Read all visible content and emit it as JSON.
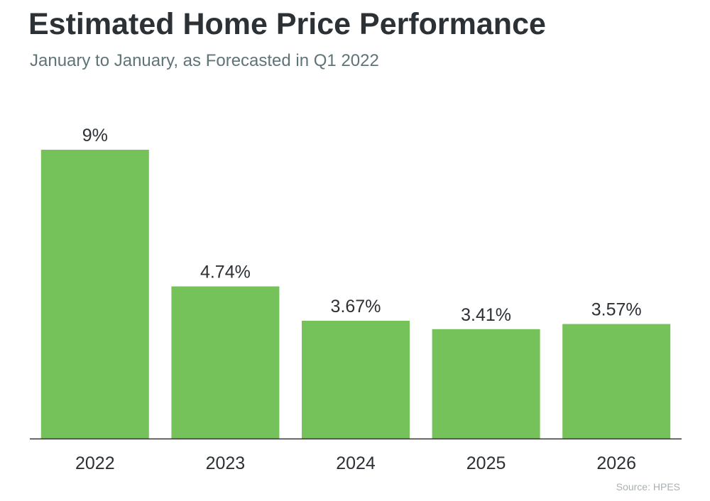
{
  "header": {
    "title": "Estimated Home Price Performance",
    "subtitle": "January to January, as Forecasted in Q1 2022"
  },
  "footer": {
    "source": "Source: HPES"
  },
  "colors": {
    "bar": "#76c25a",
    "axis": "#333333",
    "label": "#2c3136"
  },
  "chart_data": {
    "type": "bar",
    "categories": [
      "2022",
      "2023",
      "2024",
      "2025",
      "2026"
    ],
    "values": [
      9,
      4.74,
      3.67,
      3.41,
      3.57
    ],
    "data_labels": [
      "9%",
      "4.74%",
      "3.67%",
      "3.41%",
      "3.57%"
    ],
    "title": "Estimated Home Price Performance",
    "subtitle": "January to January, as Forecasted in Q1 2022",
    "xlabel": "",
    "ylabel": "",
    "ylim": [
      0,
      9
    ],
    "grid": false,
    "legend": "none"
  }
}
